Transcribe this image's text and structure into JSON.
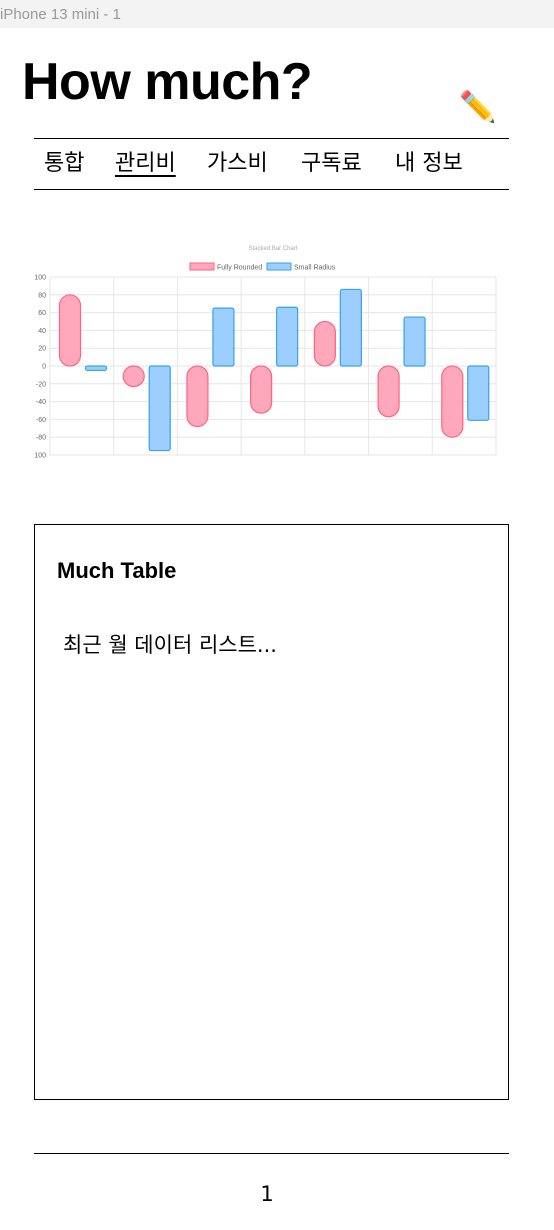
{
  "frame": {
    "label": "iPhone 13 mini - 1"
  },
  "header": {
    "title": "How much?",
    "edit_icon": "pencil-icon"
  },
  "nav": {
    "items": [
      {
        "label": "통합",
        "active": false
      },
      {
        "label": "관리비",
        "active": true
      },
      {
        "label": "가스비",
        "active": false
      },
      {
        "label": "구독료",
        "active": false
      },
      {
        "label": "내 정보",
        "active": false
      }
    ]
  },
  "chart_data": {
    "type": "bar",
    "title": "Stacked Bar Chart",
    "legend": "top",
    "grid": true,
    "ylim": [
      -100,
      100
    ],
    "yticks": [
      100,
      80,
      60,
      40,
      20,
      0,
      -20,
      -40,
      -60,
      -80,
      -100
    ],
    "series": [
      {
        "name": "Fully Rounded",
        "color": "#ffa8bb",
        "border": "#ff6384",
        "values": [
          80,
          -23,
          -68,
          -53,
          50,
          -57,
          -80
        ]
      },
      {
        "name": "Small Radius",
        "color": "#9ccfff",
        "border": "#36a2eb",
        "values": [
          -5,
          -95,
          65,
          66,
          86,
          55,
          -61
        ]
      }
    ]
  },
  "table": {
    "title": "Much Table",
    "body": "최근 월 데이터 리스트..."
  },
  "footer": {
    "page": "1"
  }
}
